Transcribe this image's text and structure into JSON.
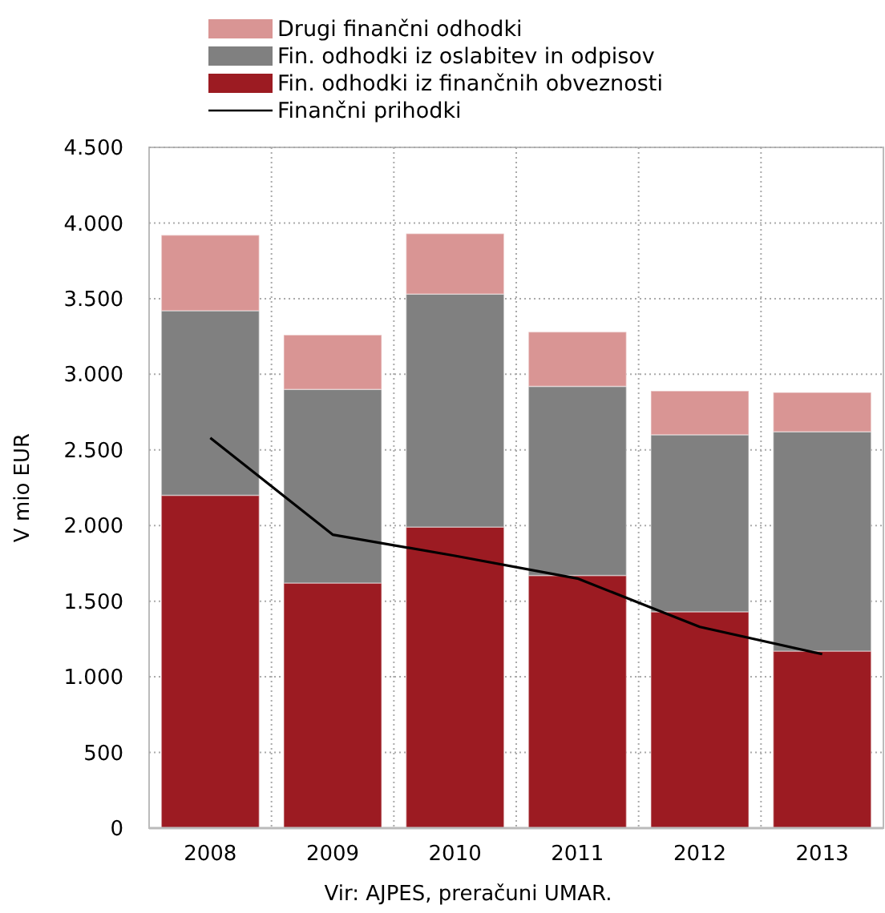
{
  "chart_data": {
    "type": "bar",
    "stacked": true,
    "categories": [
      "2008",
      "2009",
      "2010",
      "2011",
      "2012",
      "2013"
    ],
    "series": [
      {
        "name": "Fin. odhodki iz finančnih obveznosti",
        "color": "#9c1b22",
        "values": [
          2200,
          1620,
          1990,
          1670,
          1430,
          1170
        ]
      },
      {
        "name": "Fin. odhodki iz oslabitev in odpisov",
        "color": "#808080",
        "values": [
          1220,
          1280,
          1540,
          1250,
          1170,
          1450
        ]
      },
      {
        "name": "Drugi finančni odhodki",
        "color": "#d99594",
        "values": [
          500,
          360,
          400,
          360,
          290,
          260
        ]
      },
      {
        "name": "Finančni prihodki",
        "type": "line",
        "color": "#000000",
        "values": [
          2580,
          1940,
          1800,
          1650,
          1330,
          1150
        ]
      }
    ],
    "ylabel": "V mio EUR",
    "ylim": [
      0,
      4500
    ],
    "yticks": [
      {
        "value": 0,
        "label": "0"
      },
      {
        "value": 500,
        "label": "500"
      },
      {
        "value": 1000,
        "label": "1.000"
      },
      {
        "value": 1500,
        "label": "1.500"
      },
      {
        "value": 2000,
        "label": "2.000"
      },
      {
        "value": 2500,
        "label": "2.500"
      },
      {
        "value": 3000,
        "label": "3.000"
      },
      {
        "value": 3500,
        "label": "3.500"
      },
      {
        "value": 4000,
        "label": "4.000"
      },
      {
        "value": 4500,
        "label": "4.500"
      }
    ],
    "grid": true,
    "legend": "top",
    "line_style": "solid",
    "annotations": [
      "Vir: AJPES, preračuni UMAR."
    ]
  }
}
